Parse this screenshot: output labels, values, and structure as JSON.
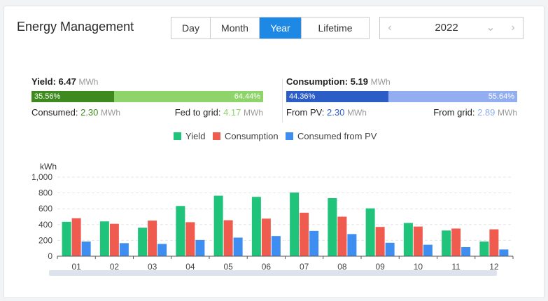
{
  "header": {
    "title": "Energy Management"
  },
  "range_tabs": [
    {
      "label": "Day",
      "active": false
    },
    {
      "label": "Month",
      "active": false
    },
    {
      "label": "Year",
      "active": true
    },
    {
      "label": "Lifetime",
      "active": false
    }
  ],
  "year_picker": {
    "value": "2022",
    "prev_icon": "chevron-left-icon",
    "next_icon": "chevron-right-icon",
    "dropdown_icon": "chevron-down-icon"
  },
  "yield_summary": {
    "label": "Yield:",
    "value": "6.47",
    "unit": "MWh",
    "bar_left_pct": "35.56%",
    "bar_right_pct": "64.44%",
    "bar_left_fraction": 0.3556,
    "bar_left_color": "#3f8a1f",
    "bar_right_color": "#8fd46a",
    "left_label": "Consumed: ",
    "left_value": "2.30",
    "left_unit": "MWh",
    "right_label": "Fed to grid: ",
    "right_value": "4.17",
    "right_unit": "MWh"
  },
  "consumption_summary": {
    "label": "Consumption:",
    "value": "5.19",
    "unit": "MWh",
    "bar_left_pct": "44.36%",
    "bar_right_pct": "55.64%",
    "bar_left_fraction": 0.4436,
    "bar_left_color": "#2c5cc5",
    "bar_right_color": "#93aef0",
    "left_label": "From PV: ",
    "left_value": "2.30",
    "left_unit": "MWh",
    "right_label": "From grid: ",
    "right_value": "2.89",
    "right_unit": "MWh"
  },
  "chart_data": {
    "type": "bar",
    "ylabel": "kWh",
    "ylim": [
      0,
      1000
    ],
    "yticks": [
      "0",
      "200",
      "400",
      "600",
      "800",
      "1,000"
    ],
    "grid": true,
    "legend_position": "top-center",
    "categories": [
      "01",
      "02",
      "03",
      "04",
      "05",
      "06",
      "07",
      "08",
      "09",
      "10",
      "11",
      "12"
    ],
    "series": [
      {
        "name": "Yield",
        "color": "#1fc47a",
        "values": [
          435,
          440,
          360,
          635,
          765,
          750,
          805,
          735,
          605,
          420,
          325,
          185
        ]
      },
      {
        "name": "Consumption",
        "color": "#ef5b4f",
        "values": [
          480,
          410,
          450,
          430,
          455,
          475,
          550,
          500,
          370,
          375,
          350,
          340
        ]
      },
      {
        "name": "Consumed from PV",
        "color": "#3d8ef0",
        "values": [
          185,
          165,
          155,
          205,
          235,
          255,
          320,
          280,
          170,
          145,
          115,
          85
        ]
      }
    ]
  }
}
